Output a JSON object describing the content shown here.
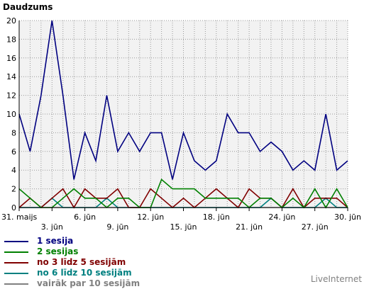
{
  "chart_data": {
    "type": "line",
    "title": "Daudzums",
    "ylim": [
      0,
      20
    ],
    "yticks": [
      0,
      2,
      4,
      6,
      8,
      10,
      12,
      14,
      16,
      18,
      20
    ],
    "x": [
      "31. maijs",
      "1. jūn",
      "2. jūn",
      "3. jūn",
      "4. jūn",
      "5. jūn",
      "6. jūn",
      "7. jūn",
      "8. jūn",
      "9. jūn",
      "10. jūn",
      "11. jūn",
      "12. jūn",
      "13. jūn",
      "14. jūn",
      "15. jūn",
      "16. jūn",
      "17. jūn",
      "18. jūn",
      "19. jūn",
      "20. jūn",
      "21. jūn",
      "22. jūn",
      "23. jūn",
      "24. jūn",
      "25. jūn",
      "26. jūn",
      "27. jūn",
      "28. jūn",
      "29. jūn",
      "30. jūn"
    ],
    "xtick_labels": [
      {
        "index": 0,
        "label": "31. maijs"
      },
      {
        "index": 3,
        "label": "3. jūn"
      },
      {
        "index": 6,
        "label": "6. jūn"
      },
      {
        "index": 9,
        "label": "9. jūn"
      },
      {
        "index": 12,
        "label": "12. jūn"
      },
      {
        "index": 15,
        "label": "15. jūn"
      },
      {
        "index": 18,
        "label": "18. jūn"
      },
      {
        "index": 21,
        "label": "21. jūn"
      },
      {
        "index": 24,
        "label": "24. jūn"
      },
      {
        "index": 27,
        "label": "27. jūn"
      },
      {
        "index": 30,
        "label": "30. jūn"
      }
    ],
    "grid": true,
    "legend_position": "bottom-left",
    "series": [
      {
        "name": "1 sesija",
        "color": "#000080",
        "values": [
          10,
          6,
          12,
          20,
          12,
          3,
          8,
          5,
          12,
          6,
          8,
          6,
          8,
          8,
          3,
          8,
          5,
          4,
          5,
          10,
          8,
          8,
          6,
          7,
          6,
          4,
          5,
          4,
          10,
          4,
          5
        ]
      },
      {
        "name": "2 sesijas",
        "color": "#008000",
        "values": [
          2,
          1,
          0,
          0,
          1,
          2,
          1,
          1,
          0,
          1,
          1,
          0,
          0,
          3,
          2,
          2,
          2,
          1,
          1,
          1,
          1,
          0,
          1,
          1,
          0,
          1,
          0,
          2,
          0,
          2,
          0
        ]
      },
      {
        "name": "no 3 līdz 5 sesijām",
        "color": "#800000",
        "values": [
          0,
          1,
          0,
          1,
          2,
          0,
          2,
          1,
          1,
          2,
          0,
          0,
          2,
          1,
          0,
          1,
          0,
          1,
          2,
          1,
          0,
          2,
          1,
          1,
          0,
          2,
          0,
          1,
          1,
          1,
          0
        ]
      },
      {
        "name": "no 6 līdz 10 sesijām",
        "color": "#008080",
        "values": [
          0,
          0,
          0,
          1,
          0,
          0,
          0,
          0,
          1,
          0,
          0,
          0,
          0,
          0,
          0,
          0,
          0,
          0,
          0,
          0,
          0,
          0,
          0,
          1,
          0,
          0,
          0,
          0,
          1,
          0,
          0
        ]
      },
      {
        "name": "vairāk par 10 sesijām",
        "color": "#808080",
        "values": [
          0,
          0,
          0,
          0,
          0,
          0,
          0,
          0,
          0,
          0,
          0,
          0,
          0,
          0,
          0,
          0,
          0,
          0,
          0,
          0,
          0,
          0,
          0,
          0,
          0,
          0,
          0,
          0,
          0,
          0,
          0
        ]
      }
    ]
  },
  "branding": "LiveInternet"
}
